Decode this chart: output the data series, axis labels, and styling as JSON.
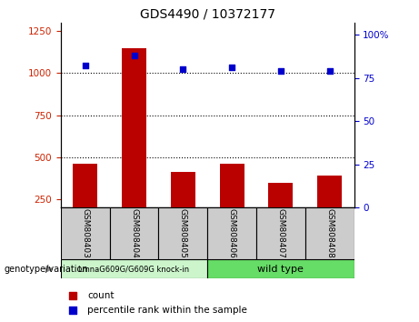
{
  "title": "GDS4490 / 10372177",
  "samples": [
    "GSM808403",
    "GSM808404",
    "GSM808405",
    "GSM808406",
    "GSM808407",
    "GSM808408"
  ],
  "bar_values": [
    460,
    1150,
    410,
    460,
    350,
    390
  ],
  "percentile_values": [
    82,
    88,
    80,
    81,
    79,
    79
  ],
  "bar_color": "#bb0000",
  "dot_color": "#0000cc",
  "ylim_left": [
    200,
    1300
  ],
  "yticks_left": [
    250,
    500,
    750,
    1000,
    1250
  ],
  "ylim_right": [
    0,
    107
  ],
  "yticks_right": [
    0,
    25,
    50,
    75,
    100
  ],
  "yticklabels_right": [
    "0",
    "25",
    "50",
    "75",
    "100%"
  ],
  "grid_values": [
    500,
    750,
    1000
  ],
  "group1_label": "LmnaG609G/G609G knock-in",
  "group2_label": "wild type",
  "genotype_label": "genotype/variation",
  "legend_count": "count",
  "legend_percentile": "percentile rank within the sample",
  "left_tick_color": "#cc2200",
  "right_tick_color": "#0000cc",
  "group1_color": "#ccf5cc",
  "group2_color": "#66dd66",
  "sample_box_color": "#cccccc",
  "base_value": 200,
  "bar_width": 0.5
}
